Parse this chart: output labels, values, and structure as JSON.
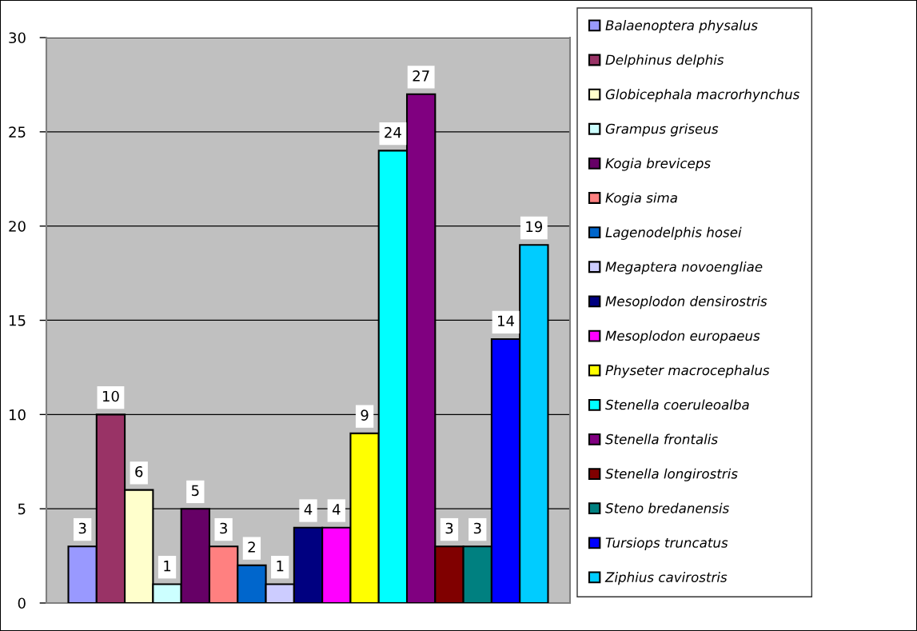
{
  "chart_data": {
    "type": "bar",
    "categories": [
      null
    ],
    "series": [
      {
        "name": "Balaenoptera physalus",
        "color": "#9999ff",
        "values": [
          3
        ]
      },
      {
        "name": "Delphinus delphis",
        "color": "#993366",
        "values": [
          10
        ]
      },
      {
        "name": "Globicephala macrorhynchus",
        "color": "#ffffcc",
        "values": [
          6
        ]
      },
      {
        "name": "Grampus griseus",
        "color": "#ccffff",
        "values": [
          1
        ]
      },
      {
        "name": "Kogia breviceps",
        "color": "#660066",
        "values": [
          5
        ]
      },
      {
        "name": "Kogia sima",
        "color": "#ff8080",
        "values": [
          3
        ]
      },
      {
        "name": "Lagenodelphis hosei",
        "color": "#0066cc",
        "values": [
          2
        ]
      },
      {
        "name": "Megaptera novoengliae",
        "color": "#ccccff",
        "values": [
          1
        ]
      },
      {
        "name": "Mesoplodon densirostris",
        "color": "#000080",
        "values": [
          4
        ]
      },
      {
        "name": "Mesoplodon europaeus",
        "color": "#ff00ff",
        "values": [
          4
        ]
      },
      {
        "name": "Physeter macrocephalus",
        "color": "#ffff00",
        "values": [
          9
        ]
      },
      {
        "name": "Stenella coeruleoalba",
        "color": "#00ffff",
        "values": [
          24
        ]
      },
      {
        "name": "Stenella frontalis",
        "color": "#800080",
        "values": [
          27
        ]
      },
      {
        "name": "Stenella longirostris",
        "color": "#800000",
        "values": [
          3
        ]
      },
      {
        "name": "Steno bredanensis",
        "color": "#008080",
        "values": [
          3
        ]
      },
      {
        "name": "Tursiops truncatus",
        "color": "#0000ff",
        "values": [
          14
        ]
      },
      {
        "name": "Ziphius cavirostris",
        "color": "#00ccff",
        "values": [
          19
        ]
      }
    ],
    "ylim": [
      0,
      30
    ],
    "yticks": [
      0,
      5,
      10,
      15,
      20,
      25,
      30
    ],
    "grid": "y",
    "legend": "right",
    "data_labels": true
  }
}
